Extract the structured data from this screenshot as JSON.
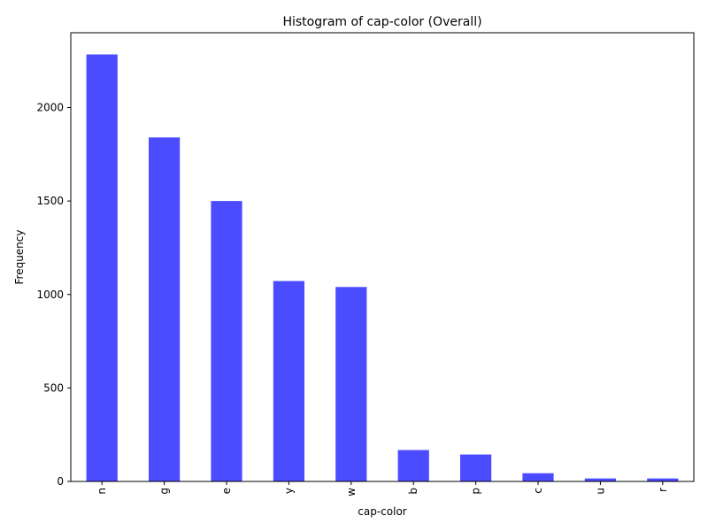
{
  "chart_data": {
    "type": "bar",
    "title": "Histogram of cap-color (Overall)",
    "xlabel": "cap-color",
    "ylabel": "Frequency",
    "categories": [
      "n",
      "g",
      "e",
      "y",
      "w",
      "b",
      "p",
      "c",
      "u",
      "r"
    ],
    "values": [
      2284,
      1840,
      1500,
      1072,
      1040,
      168,
      144,
      44,
      16,
      16
    ],
    "ylim": [
      0,
      2400
    ],
    "yticks": [
      0,
      500,
      1000,
      1500,
      2000
    ],
    "ytick_labels": [
      "0",
      "500",
      "1000",
      "1500",
      "2000"
    ],
    "bar_color": "#4b4bff",
    "grid": false,
    "legend": "none"
  }
}
